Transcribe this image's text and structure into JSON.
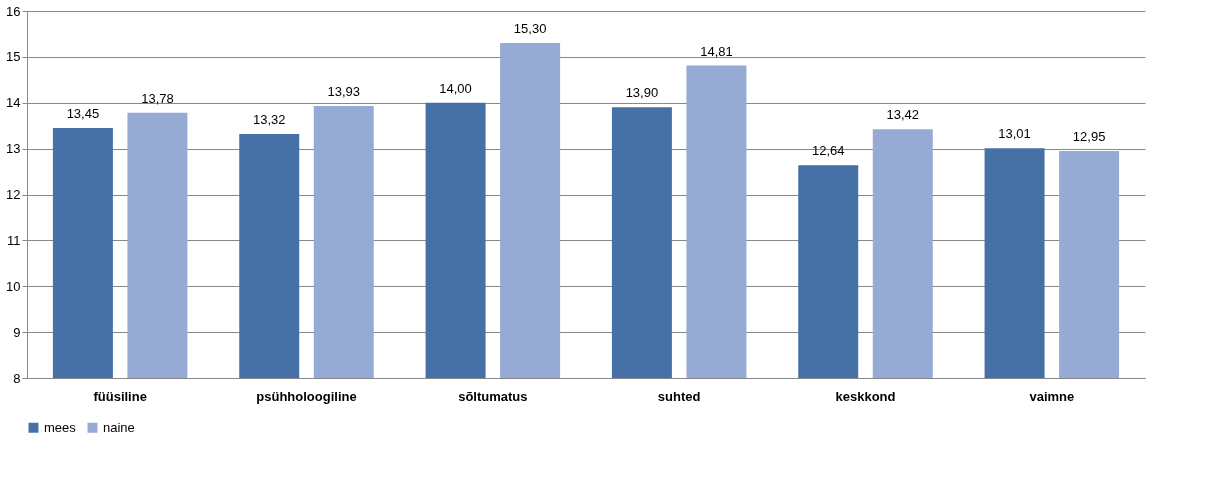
{
  "chart_data": {
    "type": "bar",
    "categories": [
      "füüsiline",
      "psühholoogiline",
      "sõltumatus",
      "suhted",
      "keskkond",
      "vaimne"
    ],
    "series": [
      {
        "name": "mees",
        "color": "#4571a6",
        "values": [
          13.45,
          13.32,
          14.0,
          13.9,
          12.64,
          13.01
        ],
        "value_labels": [
          "13,45",
          "13,32",
          "14,00",
          "13,90",
          "12,64",
          "13,01"
        ]
      },
      {
        "name": "naine",
        "color": "#95abd4",
        "values": [
          13.78,
          13.93,
          15.3,
          14.81,
          13.42,
          12.95
        ],
        "value_labels": [
          "13,78",
          "13,93",
          "15,30",
          "14,81",
          "13,42",
          "12,95"
        ]
      }
    ],
    "ylim": [
      8,
      16
    ],
    "yticks": [
      8,
      9,
      10,
      11,
      12,
      13,
      14,
      15,
      16
    ],
    "grid": "y",
    "legend": "bottom"
  }
}
